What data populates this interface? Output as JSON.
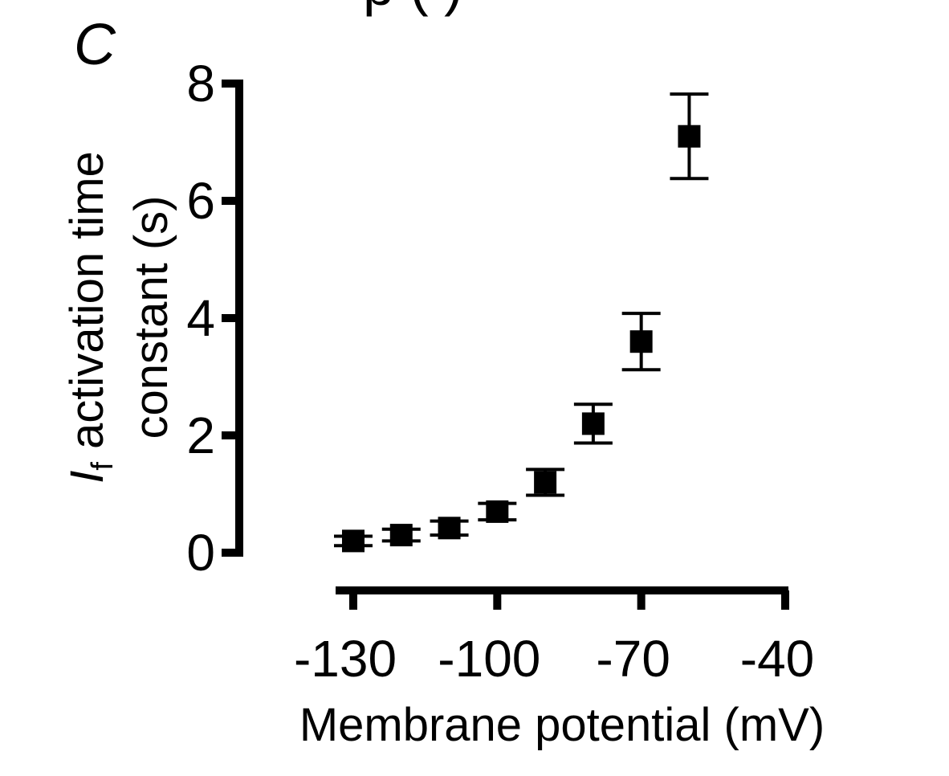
{
  "panel_label": "C",
  "top_fragment": "p                      (   )",
  "chart_data": {
    "type": "scatter",
    "xlabel": "Membrane potential (mV)",
    "ylabel": {
      "symbol": "I",
      "subscript": "f",
      "line1_rest": " activation time",
      "line2": "constant (s)"
    },
    "xlim": [
      -130,
      -40
    ],
    "ylim": [
      0,
      8
    ],
    "x_ticks": [
      -130,
      -100,
      -70,
      -40
    ],
    "x_tick_labels": [
      "-130",
      "-100",
      "-70",
      "-40"
    ],
    "y_ticks": [
      0,
      2,
      4,
      6,
      8
    ],
    "y_tick_labels": [
      "0",
      "2",
      "4",
      "6",
      "8"
    ],
    "series": [
      {
        "x": [
          -130,
          -120,
          -110,
          -100,
          -90,
          -80,
          -70,
          -60
        ],
        "y": [
          0.2,
          0.3,
          0.42,
          0.7,
          1.2,
          2.2,
          3.6,
          7.1
        ],
        "error": [
          0.08,
          0.1,
          0.12,
          0.14,
          0.22,
          0.33,
          0.48,
          0.72
        ]
      }
    ],
    "marker": "square",
    "color": "#000000",
    "grid": false,
    "legend": "none"
  }
}
